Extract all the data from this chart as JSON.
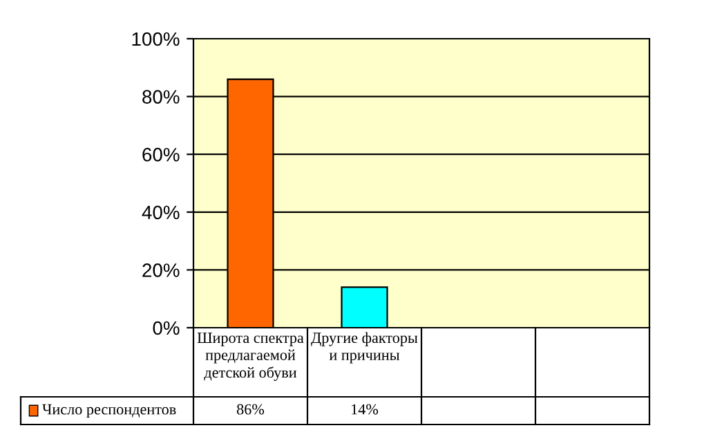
{
  "chart_data": {
    "type": "bar",
    "categories": [
      "Широта спектра предлагаемой детской обуви",
      "Другие факторы и причины",
      null,
      null
    ],
    "series": [
      {
        "name": "Число респондентов",
        "colors": [
          "#ff6600",
          "#00ffff",
          null,
          null
        ],
        "values": [
          86,
          14,
          null,
          null
        ],
        "value_labels": [
          "86%",
          "14%",
          null,
          null
        ]
      }
    ],
    "ylim": [
      0,
      100
    ],
    "yticks": [
      {
        "value": 0,
        "label": "0%"
      },
      {
        "value": 20,
        "label": "20%"
      },
      {
        "value": 40,
        "label": "40%"
      },
      {
        "value": 60,
        "label": "60%"
      },
      {
        "value": 80,
        "label": "80%"
      },
      {
        "value": 100,
        "label": "100%"
      }
    ],
    "grid": "y",
    "legend": "bottom left"
  }
}
